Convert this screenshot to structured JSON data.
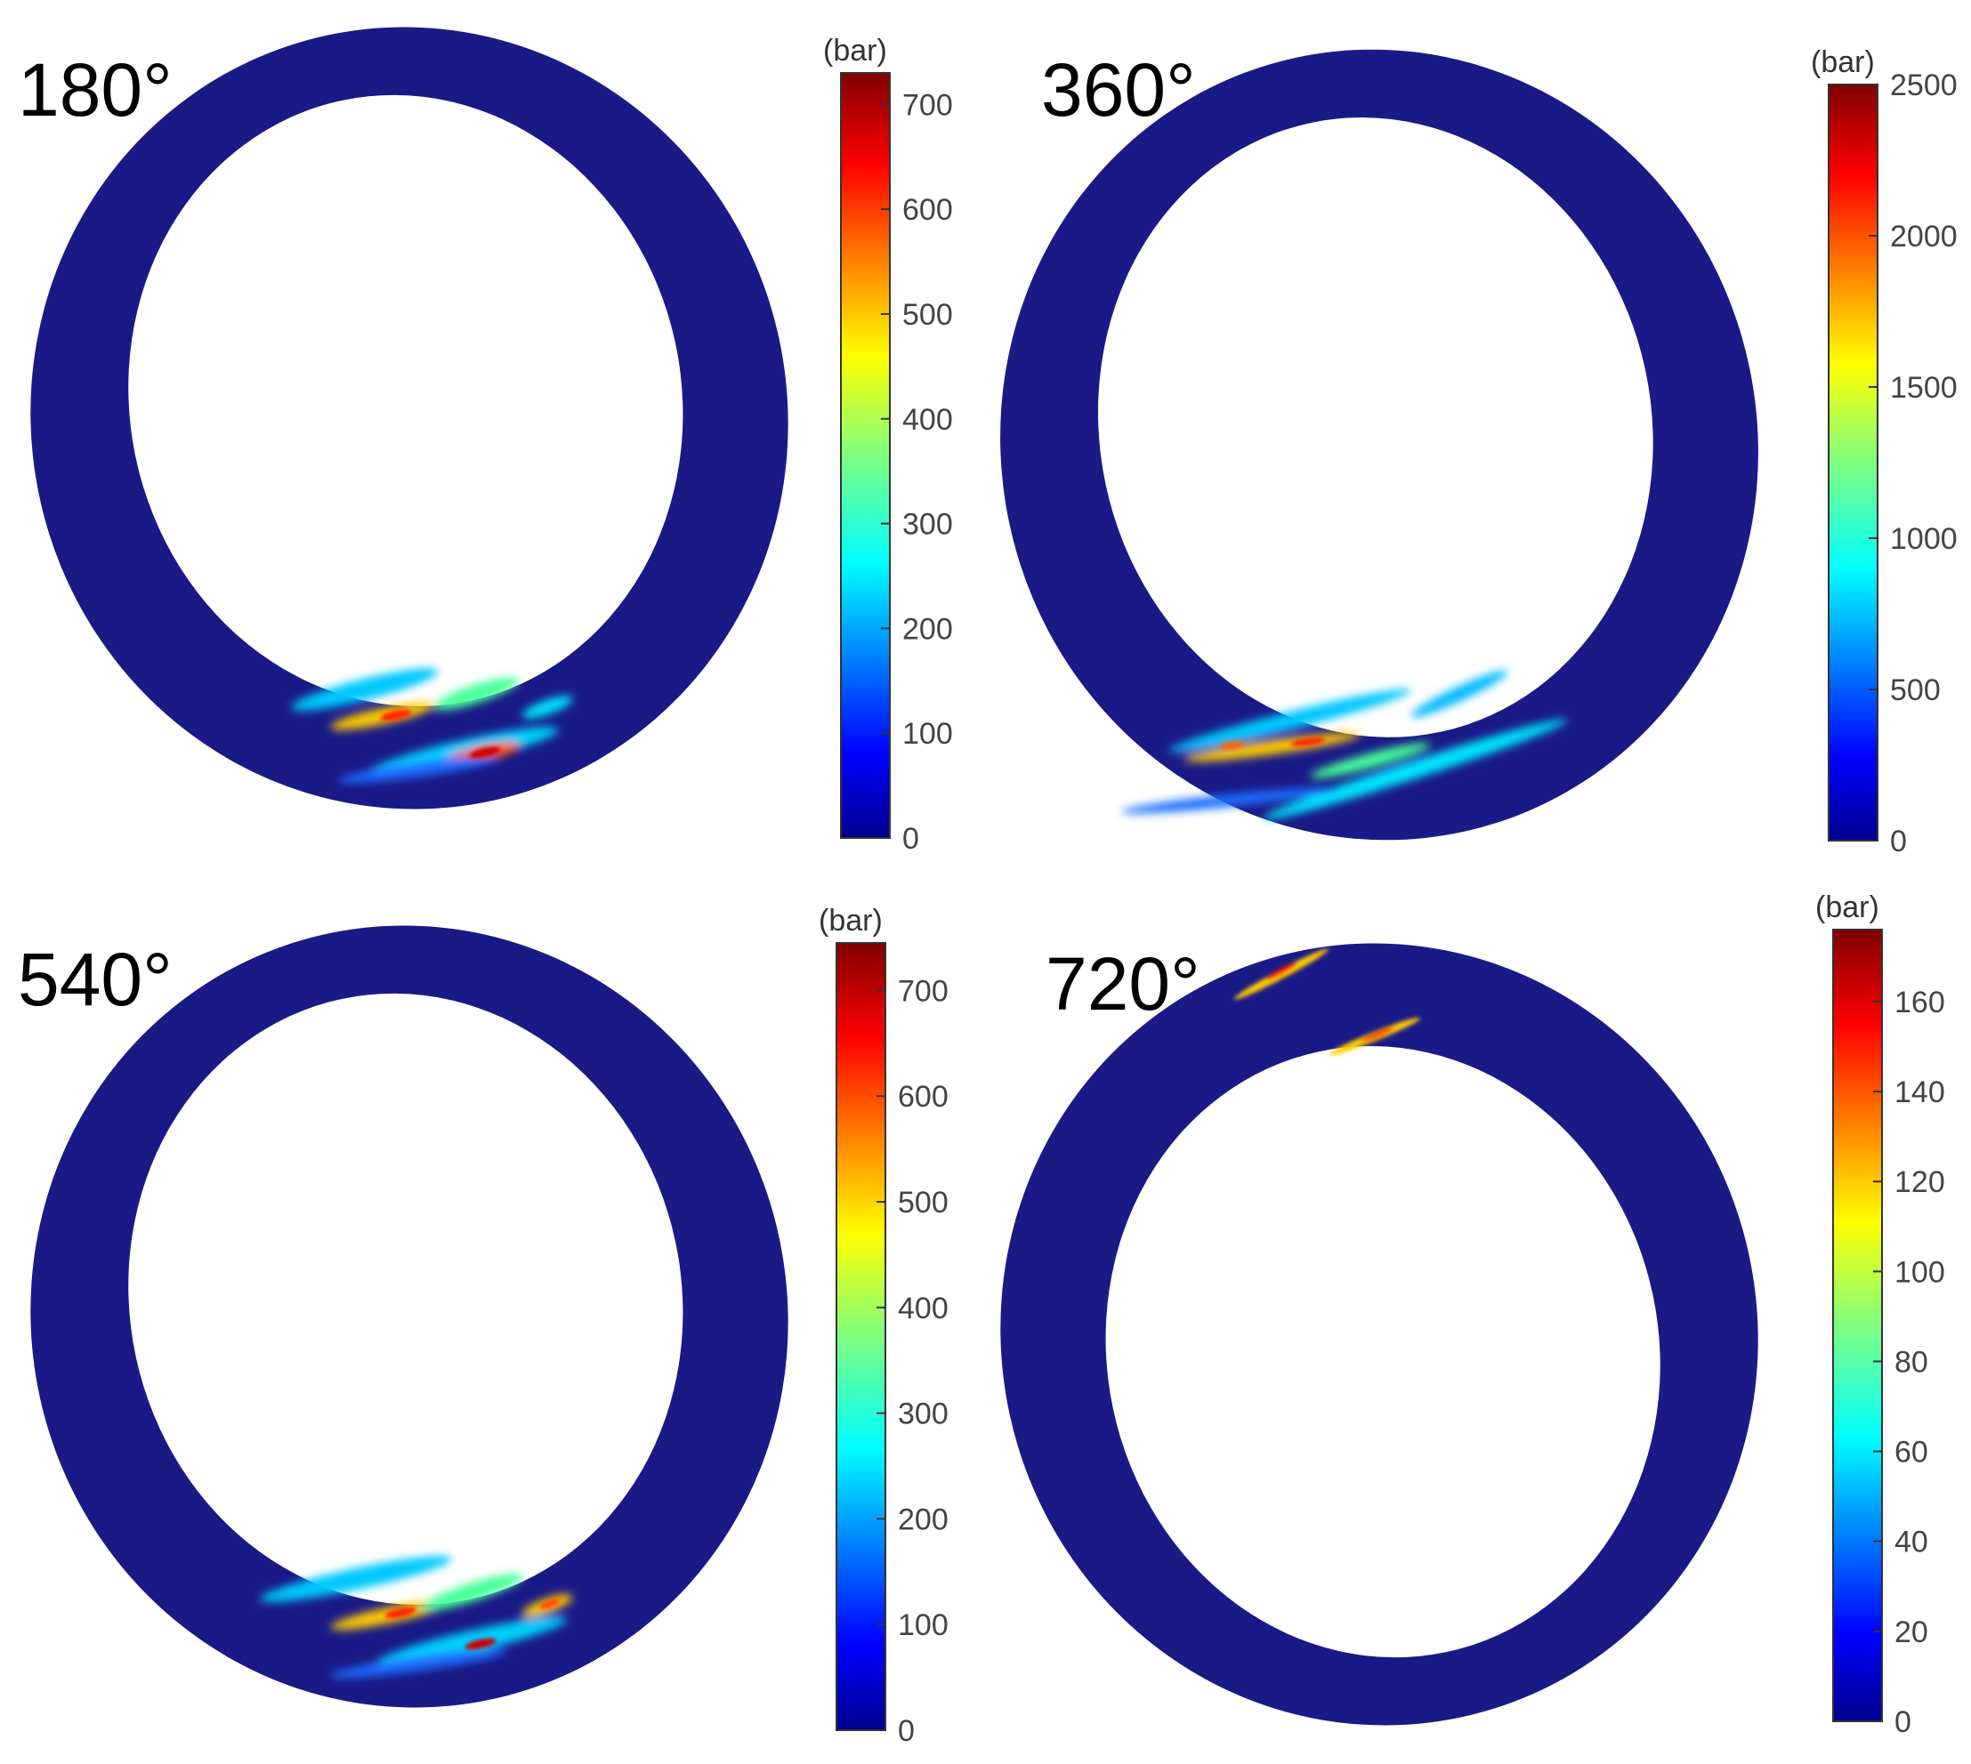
{
  "figure": {
    "colormap": "jet",
    "ring_color": "#1a1a87",
    "background": "#ffffff"
  },
  "panels": [
    {
      "angle_label": "180°",
      "colorbar": {
        "unit": "(bar)",
        "min": 0,
        "max": 730,
        "ticks": [
          0,
          100,
          200,
          300,
          400,
          500,
          600,
          700
        ]
      },
      "hotspot_region": "bottom"
    },
    {
      "angle_label": "360°",
      "colorbar": {
        "unit": "(bar)",
        "min": 0,
        "max": 2500,
        "ticks": [
          0,
          500,
          1000,
          1500,
          2000,
          2500
        ]
      },
      "hotspot_region": "bottom"
    },
    {
      "angle_label": "540°",
      "colorbar": {
        "unit": "(bar)",
        "min": 0,
        "max": 745,
        "ticks": [
          0,
          100,
          200,
          300,
          400,
          500,
          600,
          700
        ]
      },
      "hotspot_region": "bottom"
    },
    {
      "angle_label": "720°",
      "colorbar": {
        "unit": "(bar)",
        "min": 0,
        "max": 176,
        "ticks": [
          0,
          20,
          40,
          60,
          80,
          100,
          120,
          140,
          160
        ]
      },
      "hotspot_region": "top"
    }
  ]
}
